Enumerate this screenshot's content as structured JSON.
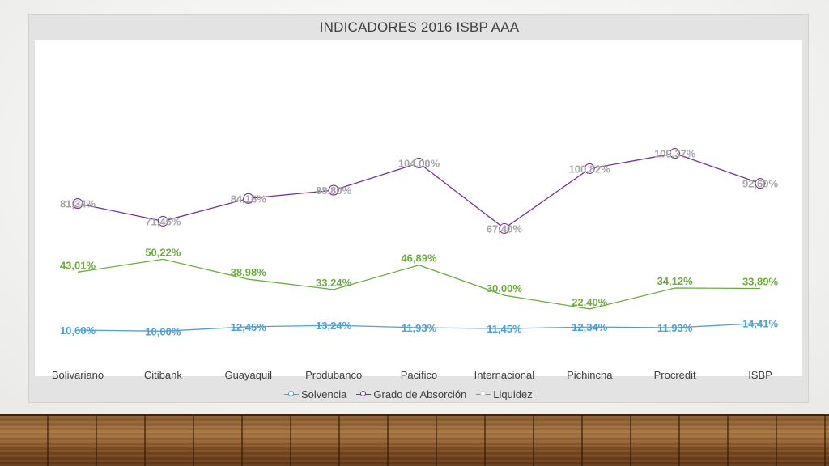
{
  "chart_data": {
    "type": "line",
    "title": "INDICADORES 2016 ISBP AAA",
    "categories": [
      "Bolivariano",
      "Citibank",
      "Guayaquil",
      "Produbanco",
      "Pacifico",
      "Internacional",
      "Pichincha",
      "Procredit",
      "ISBP"
    ],
    "series": [
      {
        "name": "Solvencia",
        "values": [
          10.6,
          10.0,
          12.45,
          13.24,
          11.93,
          11.45,
          12.34,
          11.93,
          14.41
        ],
        "labels": [
          "10,60%",
          "10,00%",
          "12,45%",
          "13,24%",
          "11,93%",
          "11,45%",
          "12,34%",
          "11,93%",
          "14,41%"
        ],
        "color": "#4f9fd6"
      },
      {
        "name": "Grado de Absorción",
        "values": [
          81.34,
          71.45,
          84.16,
          88.8,
          104.0,
          67.4,
          100.82,
          109.37,
          92.6
        ],
        "labels": [
          "81,34%",
          "71,45%",
          "84,16%",
          "88,80%",
          "104,00%",
          "67,40%",
          "100,82%",
          "109,37%",
          "92,60%"
        ],
        "color": "#7a2fa0",
        "label_color": "#a6a6a6"
      },
      {
        "name": "Liquidez",
        "values": [
          43.01,
          50.22,
          38.98,
          33.24,
          46.89,
          30.0,
          22.4,
          34.12,
          33.89
        ],
        "labels": [
          "43,01%",
          "50,22%",
          "38,98%",
          "33,24%",
          "46,89%",
          "30,00%",
          "22,40%",
          "34,12%",
          "33,89%"
        ],
        "color": "#6aad3d"
      }
    ],
    "legend_position": "bottom",
    "grid": false
  }
}
